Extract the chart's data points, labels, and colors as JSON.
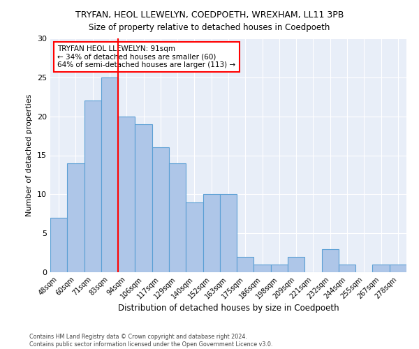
{
  "title": "TRYFAN, HEOL LLEWELYN, COEDPOETH, WREXHAM, LL11 3PB",
  "subtitle": "Size of property relative to detached houses in Coedpoeth",
  "xlabel": "Distribution of detached houses by size in Coedpoeth",
  "ylabel": "Number of detached properties",
  "categories": [
    "48sqm",
    "60sqm",
    "71sqm",
    "83sqm",
    "94sqm",
    "106sqm",
    "117sqm",
    "129sqm",
    "140sqm",
    "152sqm",
    "163sqm",
    "175sqm",
    "186sqm",
    "198sqm",
    "209sqm",
    "221sqm",
    "232sqm",
    "244sqm",
    "255sqm",
    "267sqm",
    "278sqm"
  ],
  "values": [
    7,
    14,
    22,
    25,
    20,
    19,
    16,
    14,
    9,
    10,
    10,
    2,
    1,
    1,
    2,
    0,
    3,
    1,
    0,
    1,
    1
  ],
  "bar_color": "#aec6e8",
  "bar_edge_color": "#5a9fd4",
  "bar_linewidth": 0.8,
  "property_line_color": "red",
  "annotation_line1": "TRYFAN HEOL LLEWELYN: 91sqm",
  "annotation_line2": "← 34% of detached houses are smaller (60)",
  "annotation_line3": "64% of semi-detached houses are larger (113) →",
  "annotation_box_color": "white",
  "annotation_box_edge_color": "red",
  "ylim": [
    0,
    30
  ],
  "yticks": [
    0,
    5,
    10,
    15,
    20,
    25,
    30
  ],
  "background_color": "#e8eef8",
  "footer_line1": "Contains HM Land Registry data © Crown copyright and database right 2024.",
  "footer_line2": "Contains public sector information licensed under the Open Government Licence v3.0."
}
